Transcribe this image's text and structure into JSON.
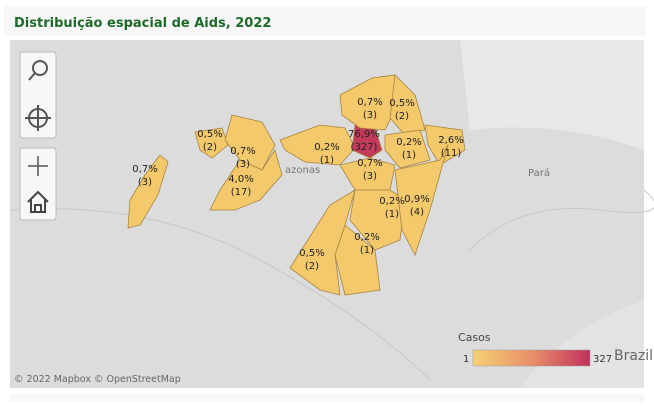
{
  "header": {
    "title": "Distribuição espacial de Aids, 2022"
  },
  "map": {
    "places": [
      "azonas",
      "Pará",
      "Brazil"
    ],
    "regions": [
      {
        "share": "0,7%",
        "cases": "(3)"
      },
      {
        "share": "0,5%",
        "cases": "(2)"
      },
      {
        "share": "0,7%",
        "cases": "(3)"
      },
      {
        "share": "4,0%",
        "cases": "(17)"
      },
      {
        "share": "0,2%",
        "cases": "(1)"
      },
      {
        "share": "76,9%",
        "cases": "(327)"
      },
      {
        "share": "0,7%",
        "cases": "(3)"
      },
      {
        "share": "0,5%",
        "cases": "(2)"
      },
      {
        "share": "0,2%",
        "cases": "(1)"
      },
      {
        "share": "2,6%",
        "cases": "(11)"
      },
      {
        "share": "0,7%",
        "cases": "(3)"
      },
      {
        "share": "0,2%",
        "cases": "(1)"
      },
      {
        "share": "0,9%",
        "cases": "(4)"
      },
      {
        "share": "0,2%",
        "cases": "(1)"
      },
      {
        "share": "0,5%",
        "cases": "(2)"
      }
    ],
    "legend": {
      "title": "Casos",
      "min": 1,
      "max": 327
    },
    "attribution": "© 2022 Mapbox © OpenStreetMap"
  }
}
